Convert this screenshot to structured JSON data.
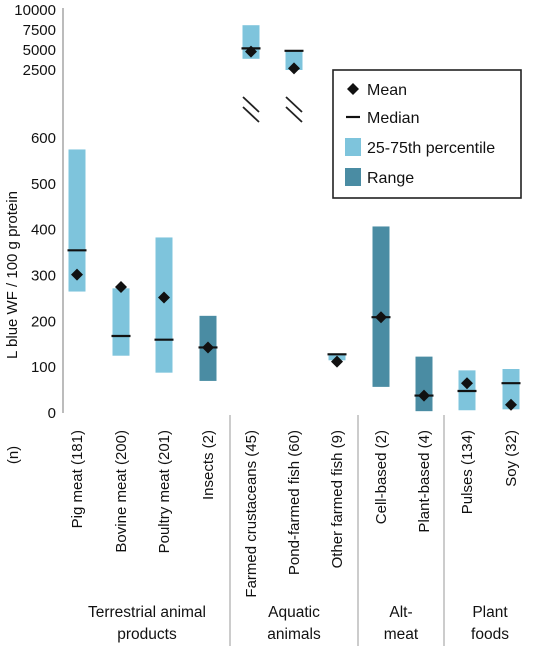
{
  "chart_data": {
    "type": "box",
    "ylabel": "L blue WF / 100 g protein",
    "n_label": "(n)",
    "upper_ticks": [
      "10000",
      "7500",
      "5000",
      "2500"
    ],
    "lower_ticks": [
      "600",
      "500",
      "400",
      "300",
      "200",
      "100",
      "0"
    ],
    "upper_ylim": [
      1000,
      10000
    ],
    "lower_ylim": [
      0,
      600
    ],
    "legend": {
      "position": "top-right",
      "entries": [
        "Mean",
        "Median",
        "25-75th percentile",
        "Range"
      ]
    },
    "colors": {
      "percentile": "#7ec4dc",
      "range": "#4a8ca3",
      "marker": "#111111"
    },
    "groups": [
      {
        "label": [
          "Terrestrial animal",
          "products"
        ]
      },
      {
        "label": [
          "Aquatic",
          "animals"
        ]
      },
      {
        "label": [
          "Alt-",
          "meat"
        ]
      },
      {
        "label": [
          "Plant",
          "foods"
        ]
      }
    ],
    "categories": [
      {
        "label": "Pig meat (181)",
        "group": 0,
        "kind": "percentile",
        "box": [
          265,
          575
        ],
        "median": 355,
        "mean": 302
      },
      {
        "label": "Bovine meat (200)",
        "group": 0,
        "kind": "percentile",
        "box": [
          125,
          272
        ],
        "median": 168,
        "mean": 275
      },
      {
        "label": "Poultry meat (201)",
        "group": 0,
        "kind": "percentile",
        "box": [
          88,
          383
        ],
        "median": 160,
        "mean": 252
      },
      {
        "label": "Insects (2)",
        "group": 0,
        "kind": "range",
        "box": [
          70,
          212
        ],
        "median": 143,
        "mean": 143
      },
      {
        "label": "Farmed crustaceans (45)",
        "group": 1,
        "kind": "percentile",
        "box": [
          3900,
          8100
        ],
        "median": 5200,
        "mean": 4800
      },
      {
        "label": "Pond-farmed fish (60)",
        "group": 1,
        "kind": "percentile",
        "box": [
          2500,
          4900
        ],
        "median": 4900,
        "mean": 2700
      },
      {
        "label": "Other farmed fish (9)",
        "group": 1,
        "kind": "percentile",
        "box": [
          115,
          130
        ],
        "median": 128,
        "mean": 112
      },
      {
        "label": "Cell-based (2)",
        "group": 2,
        "kind": "range",
        "box": [
          57,
          407
        ],
        "median": 209,
        "mean": 209
      },
      {
        "label": "Plant-based (4)",
        "group": 2,
        "kind": "range",
        "box": [
          4,
          123
        ],
        "median": 38,
        "mean": 38
      },
      {
        "label": "Pulses (134)",
        "group": 3,
        "kind": "percentile",
        "box": [
          6,
          93
        ],
        "median": 48,
        "mean": 65
      },
      {
        "label": "Soy (32)",
        "group": 3,
        "kind": "percentile",
        "box": [
          8,
          96
        ],
        "median": 65,
        "mean": 18
      }
    ]
  }
}
